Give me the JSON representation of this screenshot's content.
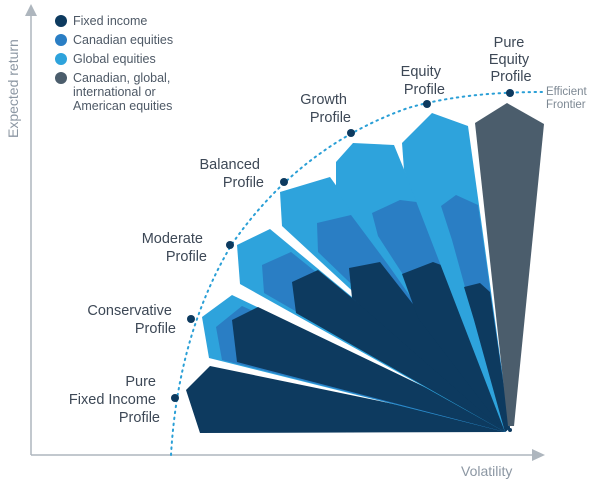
{
  "colors": {
    "fixed_income": "#0d3a5f",
    "canadian_equities": "#2a7ec4",
    "global_equities": "#2ea3dc",
    "pure_equity": "#4b5d6c",
    "axis": "#aeb6be",
    "frontier_dots": "#2a9fd6",
    "node": "#0d3a5f"
  },
  "legend": {
    "items": [
      {
        "label": "Fixed income",
        "color": "#0d3a5f"
      },
      {
        "label": "Canadian equities",
        "color": "#2a7ec4"
      },
      {
        "label": "Global equities",
        "color": "#2ea3dc"
      },
      {
        "label_lines": [
          "Canadian, global,",
          "international or",
          "American equities"
        ],
        "color": "#4b5d6c"
      }
    ]
  },
  "axes": {
    "y_label": "Expected return",
    "x_label": "Volatility"
  },
  "frontier": {
    "label_lines": [
      "Efficient",
      "Frontier"
    ]
  },
  "profiles": [
    {
      "id": "pure-fixed-income",
      "label_lines": [
        "Pure",
        "Fixed Income",
        "Profile"
      ]
    },
    {
      "id": "conservative",
      "label_lines": [
        "Conservative",
        "Profile"
      ]
    },
    {
      "id": "moderate",
      "label_lines": [
        "Moderate",
        "Profile"
      ]
    },
    {
      "id": "balanced",
      "label_lines": [
        "Balanced",
        "Profile"
      ]
    },
    {
      "id": "growth",
      "label_lines": [
        "Growth",
        "Profile"
      ]
    },
    {
      "id": "equity",
      "label_lines": [
        "Equity",
        "Profile"
      ]
    },
    {
      "id": "pure-equity",
      "label_lines": [
        "Pure",
        "Equity",
        "Profile"
      ]
    }
  ]
}
